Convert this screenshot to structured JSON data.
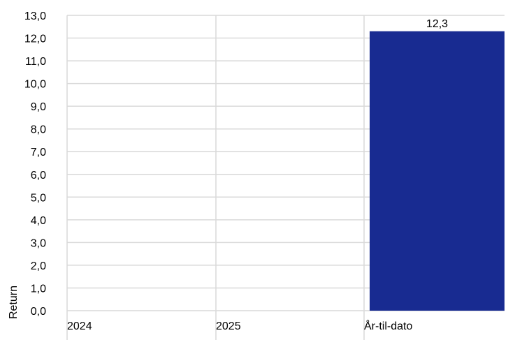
{
  "chart_data": {
    "type": "bar",
    "title": "",
    "xlabel": "",
    "ylabel": "Return",
    "categories": [
      "2024",
      "2025",
      "År-til-dato"
    ],
    "values": [
      null,
      null,
      12.3
    ],
    "data_labels": [
      "",
      "",
      "12,3"
    ],
    "ylim": [
      0,
      13
    ],
    "y_ticks": [
      0,
      1,
      2,
      3,
      4,
      5,
      6,
      7,
      8,
      9,
      10,
      11,
      12,
      13
    ],
    "y_tick_labels": [
      "0,0",
      "1,0",
      "2,0",
      "3,0",
      "4,0",
      "5,0",
      "6,0",
      "7,0",
      "8,0",
      "9,0",
      "10,0",
      "11,0",
      "12,0",
      "13,0"
    ],
    "grid": true,
    "legend": "none",
    "colors": {
      "bar": "#182b91",
      "grid": "#d9d9d9",
      "text": "#000000"
    }
  }
}
